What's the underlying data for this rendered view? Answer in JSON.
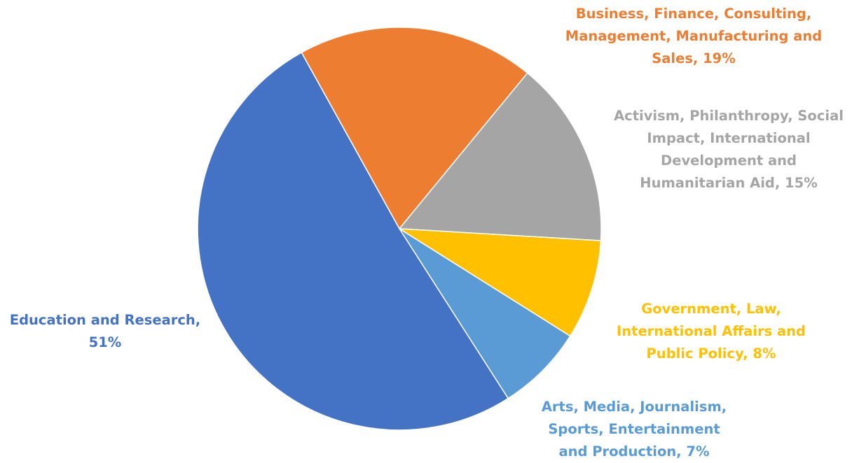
{
  "chart_data": {
    "type": "pie",
    "title": "",
    "slices": [
      {
        "name": "Business, Finance, Consulting, Management, Manufacturing and Sales",
        "value": 19,
        "label_lines": [
          "Business, Finance, Consulting,",
          "Management, Manufacturing and",
          "Sales, 19%"
        ],
        "color": "#ED7D31"
      },
      {
        "name": "Activism, Philanthropy, Social Impact, International Development and Humanitarian Aid",
        "value": 15,
        "label_lines": [
          "Activism, Philanthropy, Social",
          "Impact, International",
          "Development and",
          "Humanitarian Aid, 15%"
        ],
        "color": "#A5A5A5"
      },
      {
        "name": "Government, Law, International Affairs and Public Policy",
        "value": 8,
        "label_lines": [
          "Government, Law,",
          "International Affairs and",
          "Public Policy, 8%"
        ],
        "color": "#FFC000"
      },
      {
        "name": "Arts, Media, Journalism, Sports, Entertainment and Production",
        "value": 7,
        "label_lines": [
          "Arts, Media, Journalism,",
          "Sports, Entertainment",
          "and Production, 7%"
        ],
        "color": "#5B9BD5"
      },
      {
        "name": "Education and Research",
        "value": 51,
        "label_lines": [
          "Education and Research,",
          "51%"
        ],
        "color": "#4472C4"
      }
    ],
    "legend": "none"
  }
}
